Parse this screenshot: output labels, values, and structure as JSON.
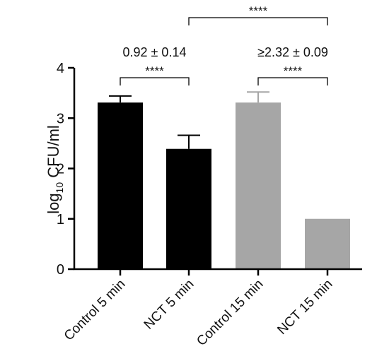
{
  "chart_data": {
    "type": "bar",
    "categories": [
      "Control 5 min",
      "NCT 5 min",
      "Control 15 min",
      "NCT 15 min"
    ],
    "values": [
      3.31,
      2.39,
      3.31,
      1.0
    ],
    "errors": [
      0.13,
      0.27,
      0.21,
      0
    ],
    "bar_colors": [
      "#000000",
      "#000000",
      "#a6a6a6",
      "#a6a6a6"
    ],
    "ylabel": {
      "main": "log",
      "sub": "10",
      "rest": " CFU/ml"
    },
    "ylim": [
      0,
      4
    ],
    "yticks": [
      0,
      1,
      2,
      3,
      4
    ],
    "grid": false,
    "annotations": [
      {
        "text": "0.92 ± 0.14",
        "over": [
          0,
          1
        ]
      },
      {
        "text": "≥2.32 ± 0.09",
        "over": [
          2,
          3
        ]
      }
    ],
    "significance": [
      {
        "from": 0,
        "to": 1,
        "label": "****"
      },
      {
        "from": 2,
        "to": 3,
        "label": "****"
      },
      {
        "from": 1,
        "to": 3,
        "label": "****"
      }
    ]
  }
}
